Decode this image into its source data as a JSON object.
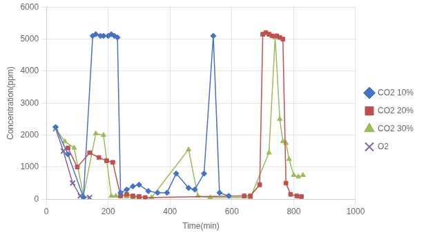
{
  "chart_data": {
    "type": "line",
    "xlabel": "Time(min)",
    "ylabel": "Concentration(ppm)",
    "xlim": [
      0,
      1000
    ],
    "ylim": [
      0,
      6000
    ],
    "xticks": [
      0,
      200,
      400,
      600,
      800,
      1000
    ],
    "yticks": [
      0,
      1000,
      2000,
      3000,
      4000,
      5000,
      6000
    ],
    "grid": true,
    "legend": "right",
    "series": [
      {
        "name": "CO2 10%",
        "color": "#4472C4",
        "marker": "diamond",
        "x": [
          30,
          70,
          120,
          150,
          160,
          175,
          185,
          200,
          210,
          220,
          230,
          240,
          260,
          280,
          300,
          330,
          360,
          390,
          420,
          460,
          480,
          510,
          540,
          560,
          590
        ],
        "values": [
          2250,
          1400,
          50,
          5100,
          5150,
          5100,
          5100,
          5100,
          5150,
          5100,
          5050,
          200,
          300,
          400,
          450,
          250,
          200,
          200,
          800,
          350,
          300,
          800,
          5100,
          200,
          100
        ]
      },
      {
        "name": "CO2 20%",
        "color": "#C0504D",
        "marker": "square",
        "x": [
          70,
          100,
          140,
          170,
          195,
          215,
          240,
          260,
          280,
          300,
          320,
          640,
          660,
          690,
          700,
          710,
          720,
          730,
          745,
          755,
          765,
          775,
          790,
          810,
          825
        ],
        "values": [
          1600,
          1000,
          1450,
          1300,
          1200,
          1150,
          100,
          150,
          100,
          80,
          50,
          100,
          100,
          450,
          5150,
          5200,
          5150,
          5100,
          5100,
          5050,
          5000,
          500,
          150,
          100,
          80
        ]
      },
      {
        "name": "CO2 30%",
        "color": "#9BBB59",
        "marker": "triangle",
        "x": [
          30,
          60,
          90,
          120,
          160,
          185,
          210,
          225,
          240,
          260,
          280,
          300,
          340,
          460,
          490,
          530,
          660,
          720,
          740,
          755,
          765,
          775,
          785,
          800,
          815,
          830
        ],
        "values": [
          2200,
          1800,
          1600,
          100,
          2050,
          2000,
          100,
          100,
          100,
          80,
          60,
          50,
          50,
          1550,
          100,
          50,
          50,
          1450,
          5050,
          2500,
          1800,
          1750,
          1250,
          750,
          700,
          750
        ]
      },
      {
        "name": "O2",
        "color": "#8064A2",
        "marker": "x",
        "x": [
          30,
          55,
          85,
          110,
          140
        ],
        "values": [
          2200,
          1500,
          500,
          100,
          50
        ]
      }
    ]
  }
}
